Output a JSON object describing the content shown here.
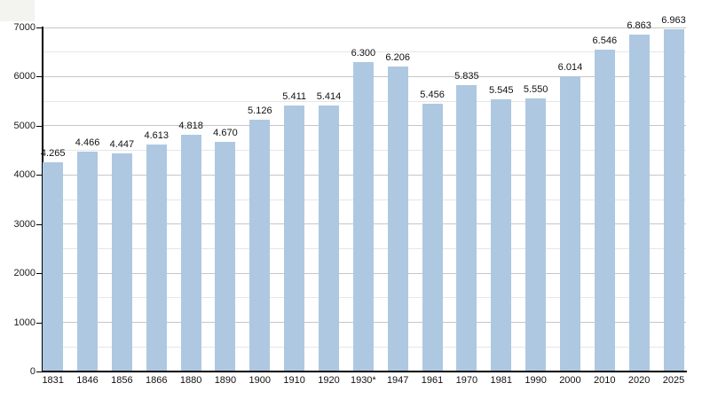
{
  "page": {
    "background_color": "#ffffff",
    "corner_artifact_color": "#f3f3f0"
  },
  "chart_data": {
    "type": "bar",
    "title": "",
    "xlabel": "",
    "ylabel": "",
    "categories": [
      "1831",
      "1846",
      "1856",
      "1866",
      "1880",
      "1890",
      "1900",
      "1910",
      "1920",
      "1930*",
      "1947",
      "1961",
      "1970",
      "1981",
      "1990",
      "2000",
      "2010",
      "2020",
      "2025"
    ],
    "values": [
      4265,
      4466,
      4447,
      4613,
      4818,
      4670,
      5126,
      5411,
      5414,
      6300,
      6206,
      5456,
      5835,
      5545,
      5550,
      6014,
      6546,
      6863,
      6963
    ],
    "value_labels": [
      "4.265",
      "4.466",
      "4.447",
      "4.613",
      "4.818",
      "4.670",
      "5.126",
      "5.411",
      "5.414",
      "6.300",
      "6.206",
      "5.456",
      "5.835",
      "5.545",
      "5.550",
      "6.014",
      "6.546",
      "6.863",
      "6.963"
    ],
    "ylim": [
      0,
      7000
    ],
    "y_major_ticks": [
      0,
      1000,
      2000,
      3000,
      4000,
      5000,
      6000,
      7000
    ],
    "y_minor_interval": 500,
    "grid": true,
    "legend": false,
    "bar_color": "#aec8e2",
    "major_grid_color": "#c6c6c6",
    "minor_grid_color": "#e6e6e6",
    "axis_color": "#000000",
    "text_color": "#111111"
  }
}
